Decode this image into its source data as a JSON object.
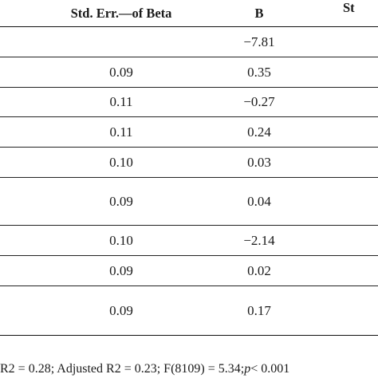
{
  "table": {
    "headers": {
      "std_err": "Std. Err.—of Beta",
      "b": "B",
      "st_partial": "St"
    },
    "rows": [
      {
        "std_err": "",
        "b": "−7.81"
      },
      {
        "std_err": "0.09",
        "b": "0.35"
      },
      {
        "std_err": "0.11",
        "b": "−0.27"
      },
      {
        "std_err": "0.11",
        "b": "0.24"
      },
      {
        "std_err": "0.10",
        "b": "0.03"
      },
      {
        "std_err": "0.09",
        "b": "0.04"
      },
      {
        "std_err": "0.10",
        "b": "−2.14"
      },
      {
        "std_err": "0.09",
        "b": "0.02"
      },
      {
        "std_err": "0.09",
        "b": "0.17"
      }
    ]
  },
  "footnote": {
    "text_before": "R2 = 0.28; Adjusted R2 = 0.23; F(8109) = 5.34; ",
    "p_symbol": "p",
    "text_after": " < 0.001"
  }
}
